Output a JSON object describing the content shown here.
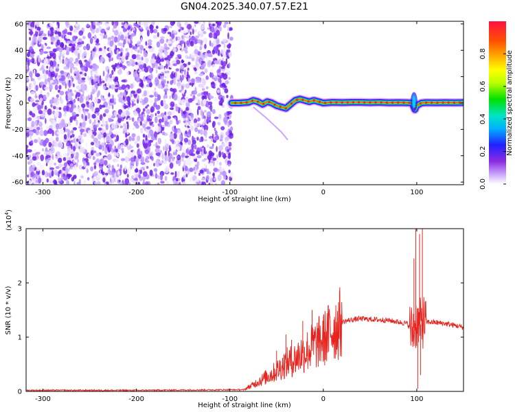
{
  "figure": {
    "title": "GN04.2025.340.07.57.E21"
  },
  "chart_data": [
    {
      "type": "heatmap",
      "title": "GN04.2025.340.07.57.E21",
      "xlabel": "Height of straight line (km)",
      "ylabel": "Frequency (Hz)",
      "xlim": [
        -318,
        150
      ],
      "ylim": [
        -62,
        62
      ],
      "x_ticks": [
        -300,
        -200,
        -100,
        0,
        100
      ],
      "x_tick_labels": [
        "-300",
        "-200",
        "-100",
        "0",
        "100"
      ],
      "y_ticks": [
        -60,
        -40,
        -20,
        0,
        20,
        40,
        60
      ],
      "y_tick_labels": [
        "-60",
        "-40",
        "-20",
        "0",
        "20",
        "40",
        "60"
      ],
      "noise_region_x": [
        -318,
        -98
      ],
      "ridge": {
        "x": [
          -98,
          -90,
          -80,
          -75,
          -70,
          -65,
          -60,
          -55,
          -50,
          -45,
          -40,
          -35,
          -30,
          -25,
          -20,
          -15,
          -10,
          -5,
          0,
          10,
          20,
          30,
          40,
          50,
          60,
          70,
          80,
          90,
          95,
          98,
          100,
          105,
          110,
          120,
          130,
          140,
          150
        ],
        "y": [
          0,
          0,
          0.5,
          2,
          1,
          -1,
          1,
          0,
          -2,
          -3,
          -4,
          -1,
          2,
          3,
          2,
          1,
          2,
          1,
          0,
          0.5,
          0.3,
          0.5,
          0.5,
          0.3,
          0.5,
          0.2,
          0.3,
          0.2,
          0,
          -5,
          -2,
          0,
          0.3,
          0.2,
          0.3,
          0.2,
          0.3
        ]
      },
      "colorbar": {
        "label": "Normalized spectral amplitude",
        "range": [
          0,
          1
        ],
        "ticks": [
          0,
          0.2,
          0.4,
          0.6,
          0.8
        ],
        "tick_labels": [
          "0.0",
          "0.2",
          "0.4",
          "0.6",
          "0.8"
        ],
        "colormap": "rainbow"
      },
      "grid": false,
      "legend": "none"
    },
    {
      "type": "line",
      "xlabel": "Height of straight line (km)",
      "ylabel": "SNR (10 * v/v)",
      "y_multiplier_label": "(x10",
      "y_multiplier_exp": "4",
      "y_multiplier_close": ")",
      "xlim": [
        -318,
        150
      ],
      "ylim": [
        0,
        3
      ],
      "x_ticks": [
        -300,
        -200,
        -100,
        0,
        100
      ],
      "x_tick_labels": [
        "-300",
        "-200",
        "-100",
        "0",
        "100"
      ],
      "y_ticks": [
        0,
        1,
        2,
        3
      ],
      "y_tick_labels": [
        "0",
        "1",
        "2",
        "3"
      ],
      "color": "#e8231d",
      "series": [
        {
          "x": [
            -318,
            -200,
            -100,
            -85,
            -80,
            -75,
            -70,
            -65,
            -60,
            -55,
            -50,
            -45,
            -40,
            -35,
            -30,
            -25,
            -20,
            -15,
            -10,
            -5,
            0,
            5,
            10,
            15,
            20,
            30,
            40,
            50,
            60,
            70,
            80,
            90,
            95,
            98,
            100,
            102,
            105,
            108,
            110,
            120,
            130,
            140,
            150
          ],
          "y": [
            0.02,
            0.02,
            0.03,
            0.03,
            0.08,
            0.12,
            0.18,
            0.22,
            0.28,
            0.32,
            0.38,
            0.45,
            0.52,
            0.55,
            0.6,
            0.68,
            0.72,
            0.78,
            0.85,
            0.9,
            0.95,
            1.05,
            1.15,
            1.22,
            1.28,
            1.32,
            1.34,
            1.33,
            1.32,
            1.31,
            1.28,
            1.25,
            1.1,
            1.2,
            1.3,
            1.2,
            1.25,
            1.3,
            1.28,
            1.27,
            1.25,
            1.22,
            1.18
          ],
          "spikes": [
            {
              "x": -63,
              "y": 0.3
            },
            {
              "x": -50,
              "y": 0.75
            },
            {
              "x": -40,
              "y": 1.05
            },
            {
              "x": -34,
              "y": 0.95
            },
            {
              "x": -22,
              "y": 1.3
            },
            {
              "x": -12,
              "y": 1.5
            },
            {
              "x": -5,
              "y": 1.25
            },
            {
              "x": 2,
              "y": 1.15
            },
            {
              "x": 97,
              "y": 2.45
            },
            {
              "x": 99,
              "y": 3.0
            },
            {
              "x": 101,
              "y": 0.05
            },
            {
              "x": 103,
              "y": 2.9
            },
            {
              "x": 106,
              "y": 3.0
            },
            {
              "x": 104,
              "y": 0.3
            }
          ]
        }
      ],
      "grid": false,
      "legend": "none"
    }
  ]
}
